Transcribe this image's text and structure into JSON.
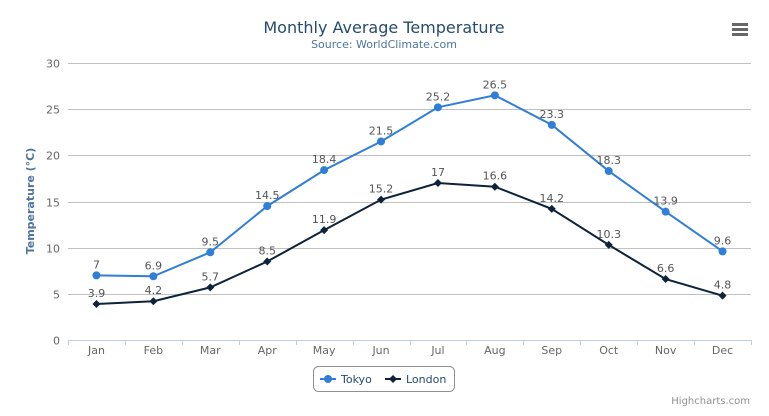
{
  "chart_data": {
    "type": "line",
    "title": "Monthly Average Temperature",
    "subtitle": "Source: WorldClimate.com",
    "xlabel": "",
    "ylabel": "Temperature (°C)",
    "categories": [
      "Jan",
      "Feb",
      "Mar",
      "Apr",
      "May",
      "Jun",
      "Jul",
      "Aug",
      "Sep",
      "Oct",
      "Nov",
      "Dec"
    ],
    "ylim": [
      0,
      30
    ],
    "yticks": [
      "0",
      "5",
      "10",
      "15",
      "20",
      "25",
      "30"
    ],
    "grid": true,
    "legend_position": "bottom-center",
    "data_labels": true,
    "series": [
      {
        "name": "Tokyo",
        "color": "#2f7ed8",
        "marker": "circle",
        "values": [
          7.0,
          6.9,
          9.5,
          14.5,
          18.4,
          21.5,
          25.2,
          26.5,
          23.3,
          18.3,
          13.9,
          9.6
        ]
      },
      {
        "name": "London",
        "color": "#0d233a",
        "marker": "diamond",
        "values": [
          3.9,
          4.2,
          5.7,
          8.5,
          11.9,
          15.2,
          17.0,
          16.6,
          14.2,
          10.3,
          6.6,
          4.8
        ]
      }
    ]
  },
  "credits": "Highcharts.com",
  "menu_icon": "hamburger-menu-icon"
}
